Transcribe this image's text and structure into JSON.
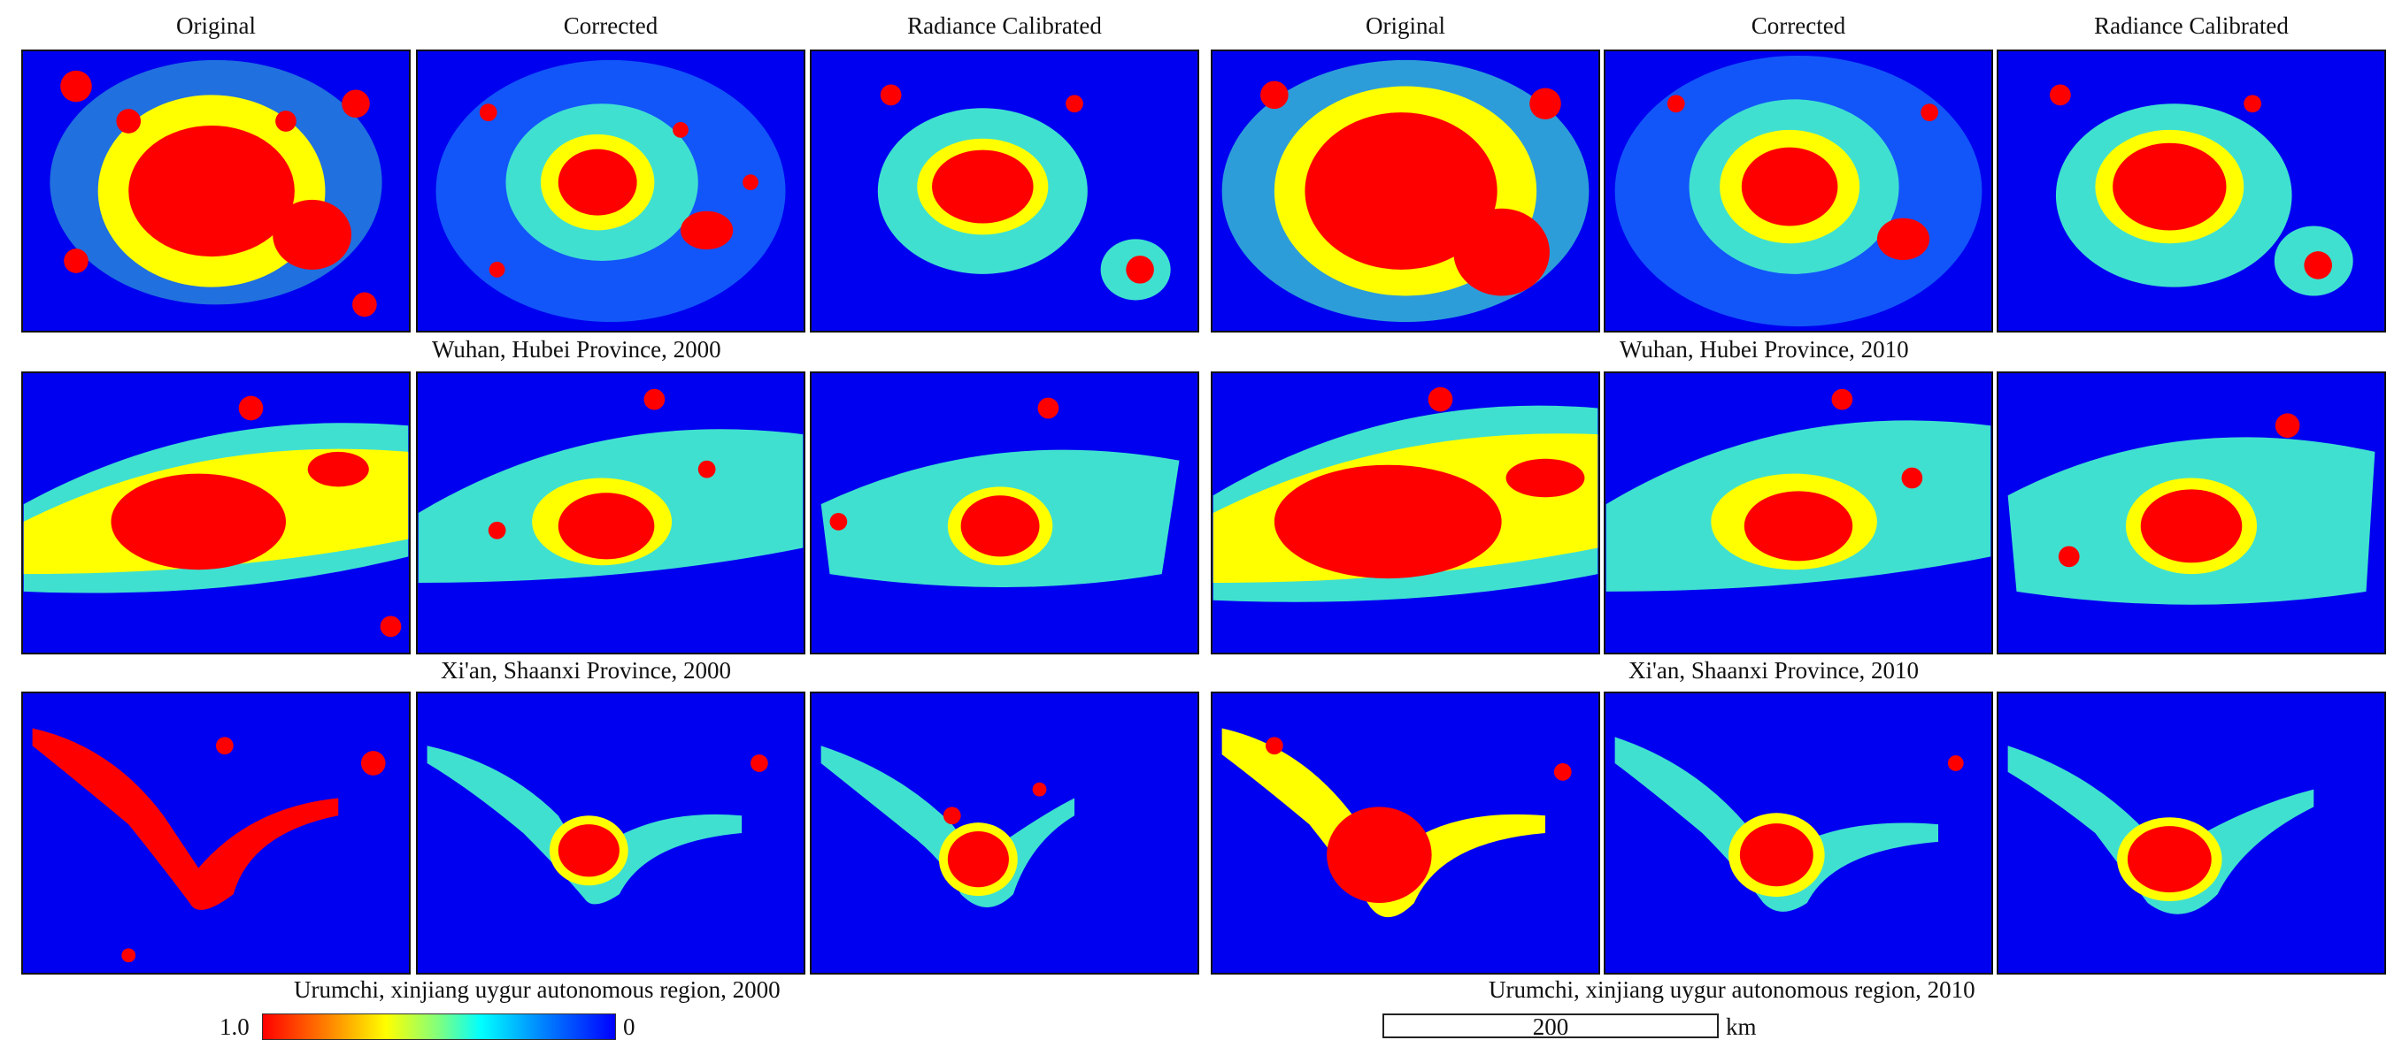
{
  "column_headers": [
    "Original",
    "Corrected",
    "Radiance Calibrated",
    "Original",
    "Corrected",
    "Radiance Calibrated"
  ],
  "captions": {
    "wuhan_2000": "Wuhan, Hubei Province, 2000",
    "wuhan_2010": "Wuhan, Hubei Province, 2010",
    "xian_2000": "Xi'an, Shaanxi Province, 2000",
    "xian_2010": "Xi'an, Shaanxi Province, 2010",
    "urumchi_2000": "Urumchi, xinjiang uygur autonomous region, 2000",
    "urumchi_2010": "Urumchi, xinjiang uygur autonomous region, 2010"
  },
  "colorbar": {
    "max_label": "1.0",
    "min_label": "0",
    "colors": [
      "#ff0000",
      "#ff7f00",
      "#ffff00",
      "#7fff7f",
      "#00ffff",
      "#0080ff",
      "#0000ff"
    ]
  },
  "scalebar": {
    "value": "200",
    "unit": "km"
  },
  "colors": {
    "background": "#0000f0",
    "core": "#ff0000",
    "halo_yellow": "#ffff00",
    "halo_cyan": "#40e0d0"
  }
}
